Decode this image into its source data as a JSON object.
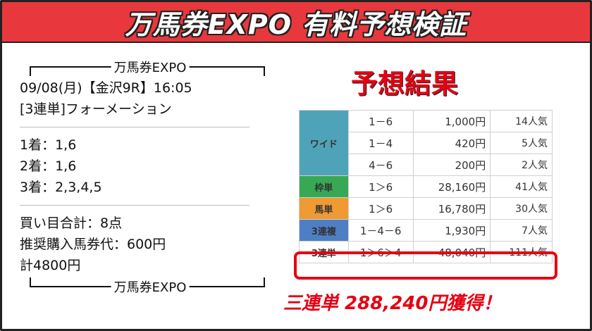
{
  "header": {
    "title": "万馬券EXPO 有料予想検証"
  },
  "prediction": {
    "brand_top": "万馬券EXPO",
    "brand_bottom": "万馬券EXPO",
    "date_race": "09/08(月)【金沢9R】16:05",
    "bet_type": "[3連単]フォーメーション",
    "first": "1着：1,6",
    "second": "2着：1,6",
    "third": "3着：2,3,4,5",
    "total_points": "買い目合計：8点",
    "unit_price": "推奨購入馬券代：600円",
    "total_cost": "計4800円"
  },
  "result": {
    "title": "予想結果",
    "rows": [
      {
        "kind": "ワイド",
        "combo": "1－6",
        "pay": "1,000円",
        "pop": "14人気"
      },
      {
        "kind": "",
        "combo": "1－4",
        "pay": "420円",
        "pop": "5人気"
      },
      {
        "kind": "",
        "combo": "4－6",
        "pay": "200円",
        "pop": "2人気"
      },
      {
        "kind": "枠単",
        "combo": "1＞6",
        "pay": "28,160円",
        "pop": "41人気"
      },
      {
        "kind": "馬単",
        "combo": "1＞6",
        "pay": "16,780円",
        "pop": "30人気"
      },
      {
        "kind": "3連複",
        "combo": "1－4－6",
        "pay": "1,930円",
        "pop": "7人気"
      },
      {
        "kind": "3連単",
        "combo": "1＞6＞4",
        "pay": "48,040円",
        "pop": "111人気"
      }
    ],
    "gain": "三連単 288,240円獲得！"
  },
  "colors": {
    "header": "#e8383d",
    "accent": "#e60012"
  }
}
